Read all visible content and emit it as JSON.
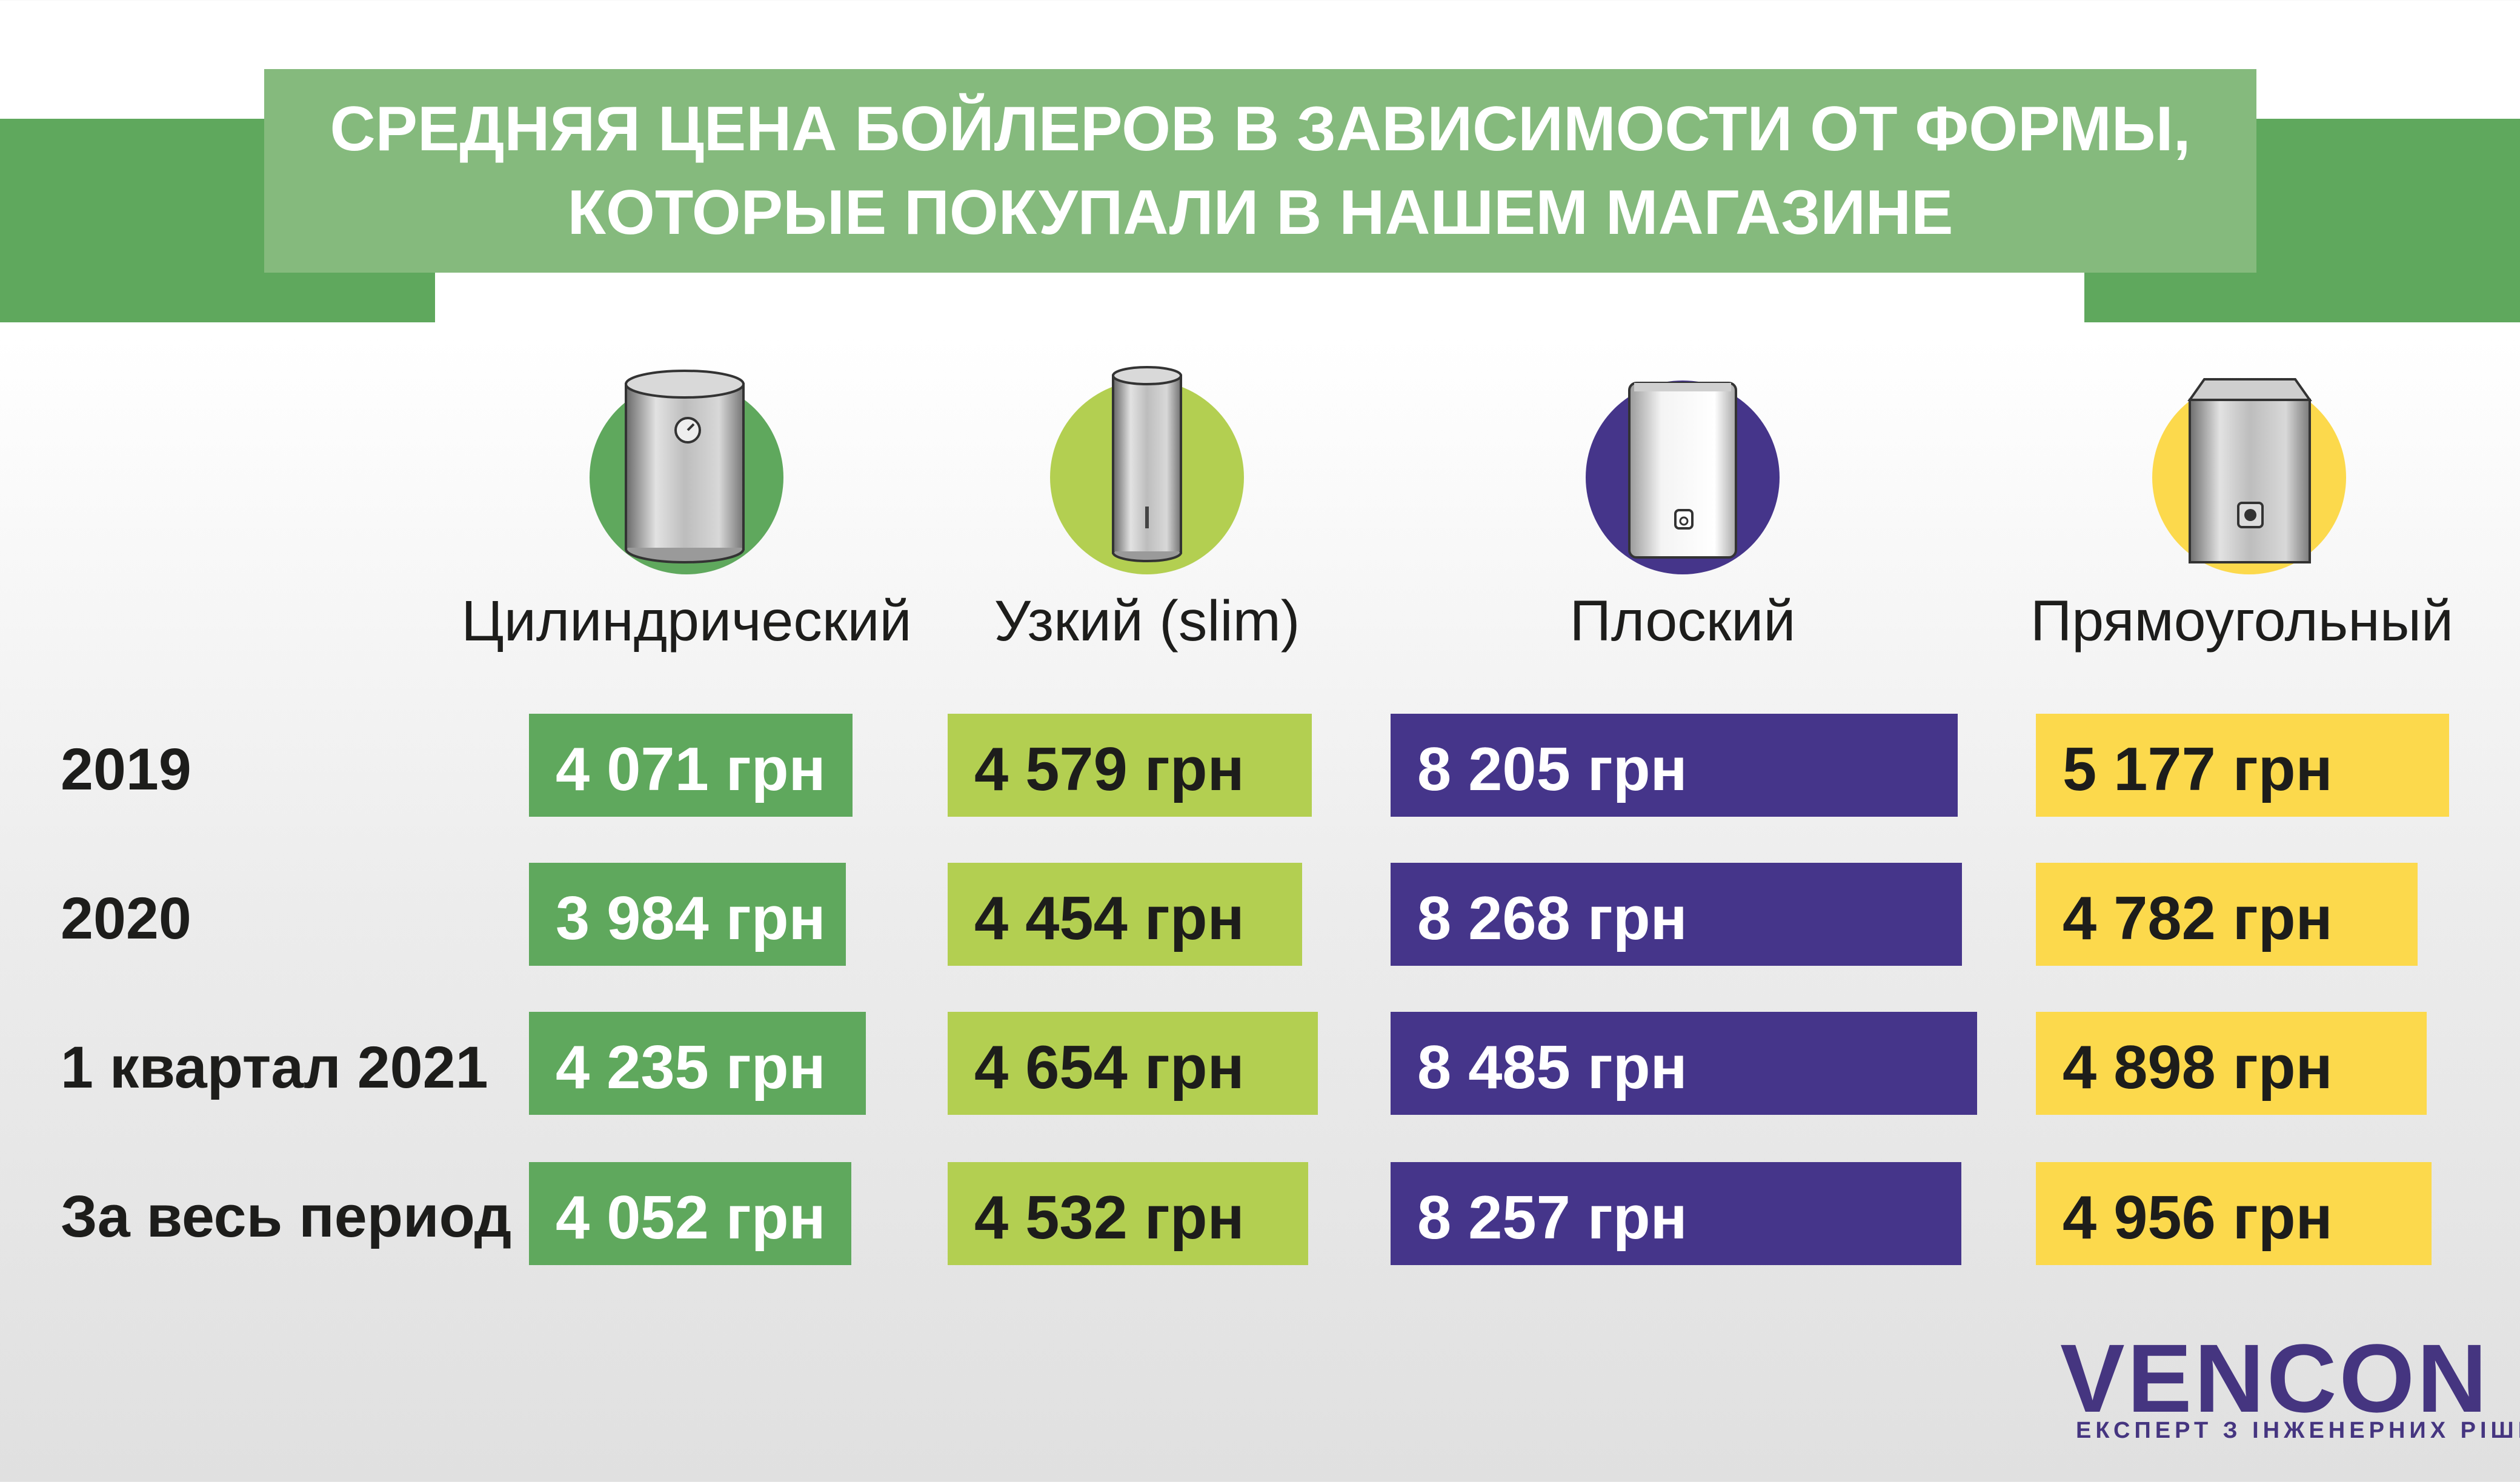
{
  "header": {
    "title": "Средняя цена бойлеров в зависимости от формы,\nкоторые покупали в нашем магазине"
  },
  "colors": {
    "cylindrical": "#5fa85d",
    "slim": "#b3cf51",
    "flat": "#45358a",
    "rectangular": "#fcd94c",
    "title_bg": "#85ba7d",
    "band": "#5fa85d",
    "brand": "#453580",
    "brand_accent": "#5fa85d"
  },
  "columns": [
    {
      "label": "Цилиндрический",
      "icon": "cylindrical-boiler-icon"
    },
    {
      "label": "Узкий (slim)",
      "icon": "slim-boiler-icon"
    },
    {
      "label": "Плоский",
      "icon": "flat-boiler-icon"
    },
    {
      "label": "Прямоугольный",
      "icon": "rectangular-boiler-icon"
    }
  ],
  "rows": [
    {
      "label": "2019",
      "cells": [
        "4 071 грн",
        "4 579 грн",
        "8 205 грн",
        "5 177 грн"
      ]
    },
    {
      "label": "2020",
      "cells": [
        "3 984 грн",
        "4 454 грн",
        "8 268 грн",
        "4 782 грн"
      ]
    },
    {
      "label": "1 квартал 2021",
      "cells": [
        "4 235 грн",
        "4 654 грн",
        "8 485 грн",
        "4 898 грн"
      ]
    },
    {
      "label": "За весь период",
      "cells": [
        "4 052 грн",
        "4 532 грн",
        "8 257 грн",
        "4 956 грн"
      ]
    }
  ],
  "chart_data": {
    "type": "bar",
    "title": "Средняя цена бойлеров в зависимости от формы, которые покупали в нашем магазине",
    "categories": [
      "2019",
      "2020",
      "1 квартал 2021",
      "За весь период"
    ],
    "series": [
      {
        "name": "Цилиндрический",
        "values": [
          4071,
          3984,
          4235,
          4052
        ]
      },
      {
        "name": "Узкий (slim)",
        "values": [
          4579,
          4454,
          4654,
          4532
        ]
      },
      {
        "name": "Плоский",
        "values": [
          8205,
          8268,
          8485,
          8257
        ]
      },
      {
        "name": "Прямоугольный",
        "values": [
          5177,
          4782,
          4898,
          4956
        ]
      }
    ],
    "unit": "грн",
    "grid": false
  },
  "logo": {
    "word": "VENCON",
    "tagline": "ЕКСПЕРТ З ІНЖЕНЕРНИХ РІШЕНЬ"
  }
}
